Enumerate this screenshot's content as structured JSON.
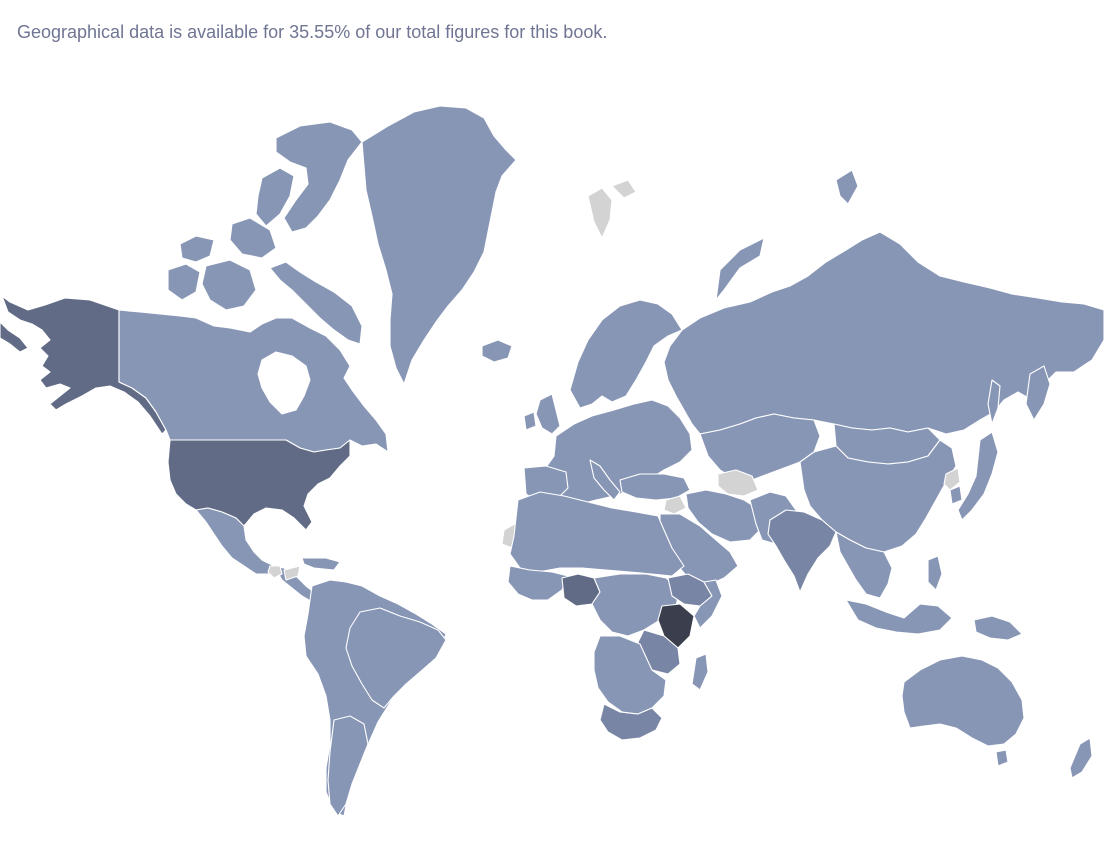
{
  "caption": "Geographical data is available for 35.55% of our total figures for this book.",
  "colors": {
    "default": "#8896b6",
    "no_data": "#d3d3d3",
    "medium": "#7985a5",
    "high": "#616b85",
    "highest": "#3b3f4d",
    "caption_text": "#6f7593",
    "border": "#ffffff"
  },
  "map": {
    "type": "choropleth",
    "coverage_percent": 35.55,
    "highlighted": [
      {
        "id": "united-states",
        "level": "high"
      },
      {
        "id": "alaska",
        "level": "high"
      },
      {
        "id": "nigeria",
        "level": "high"
      },
      {
        "id": "kenya",
        "level": "highest"
      },
      {
        "id": "india",
        "level": "medium"
      },
      {
        "id": "tanzania",
        "level": "medium"
      },
      {
        "id": "south-africa",
        "level": "medium"
      },
      {
        "id": "ethiopia",
        "level": "medium"
      }
    ],
    "no_data": [
      "svalbard",
      "turkmenistan",
      "western-sahara",
      "north-korea",
      "cuba",
      "guatemala",
      "syria"
    ]
  }
}
